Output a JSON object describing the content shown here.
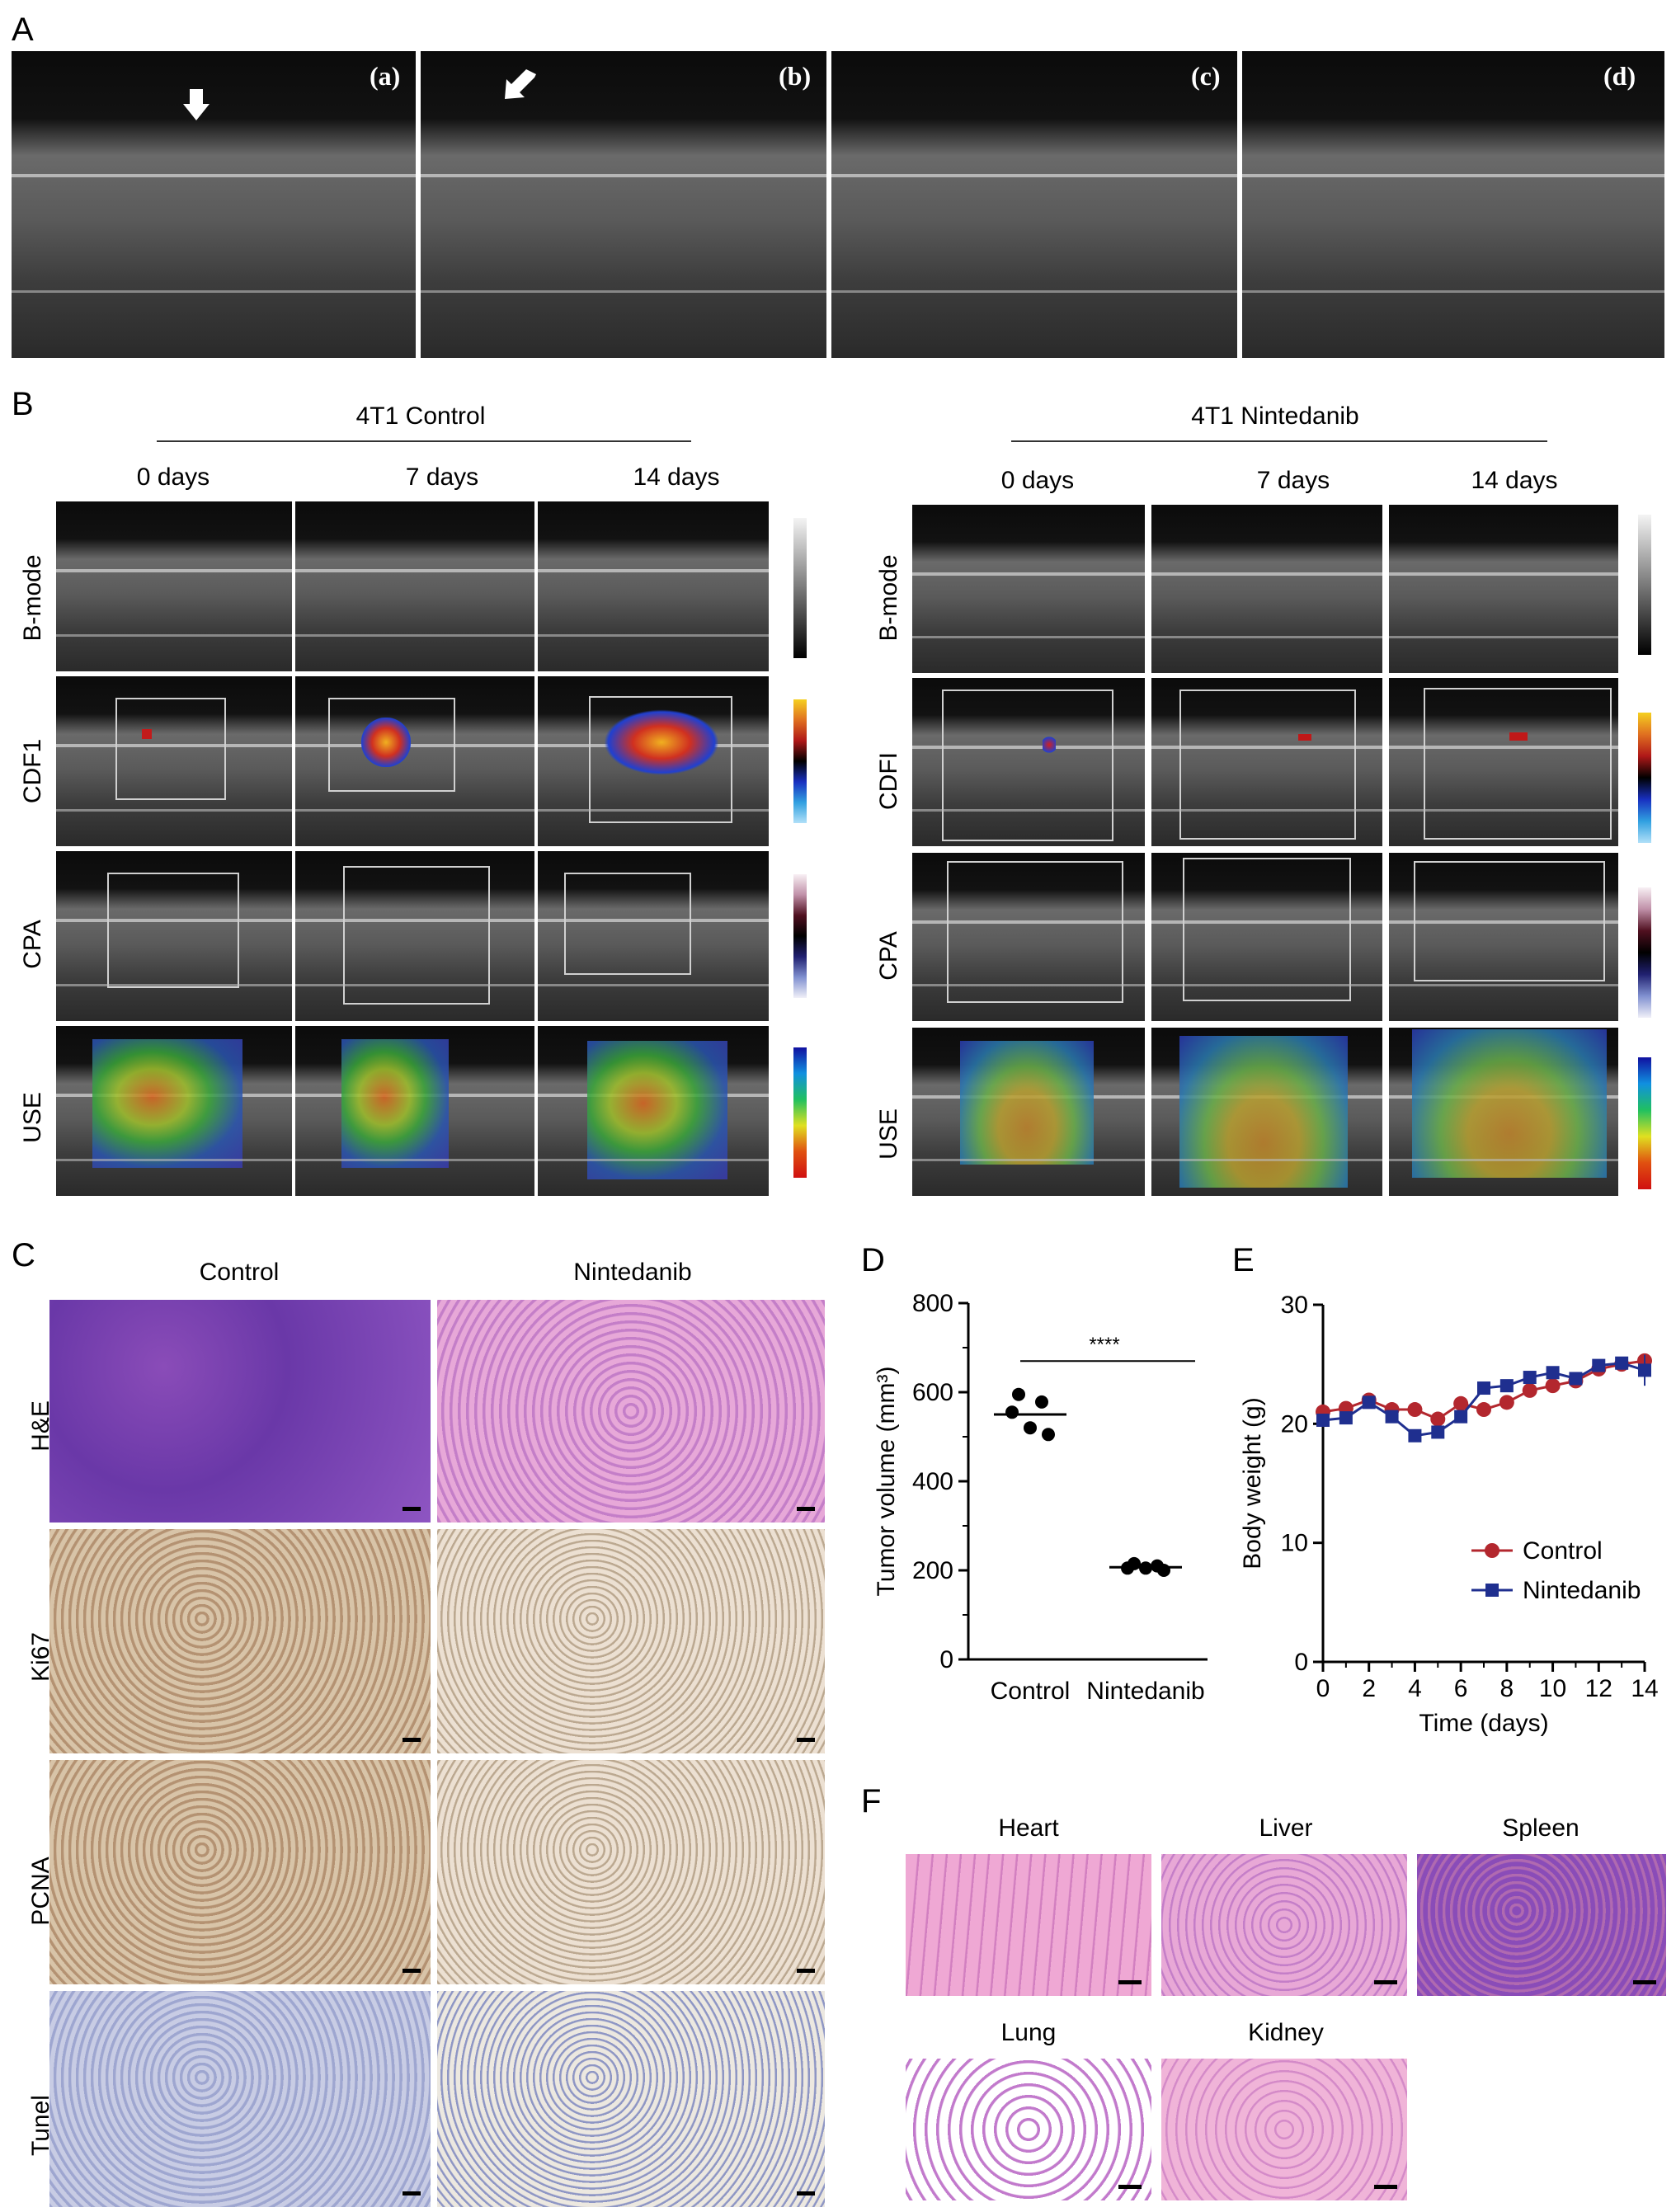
{
  "panels": {
    "A": "A",
    "B": "B",
    "C": "C",
    "D": "D",
    "E": "E",
    "F": "F"
  },
  "panelA": {
    "sub": [
      "(a)",
      "(b)",
      "(c)",
      "(d)"
    ]
  },
  "panelB": {
    "groups": [
      {
        "title": "4T1 Control",
        "days": [
          "0 days",
          "7 days",
          "14 days"
        ],
        "rows": [
          "B-mode",
          "CDF1",
          "CPA",
          "USE"
        ]
      },
      {
        "title": "4T1 Nintedanib",
        "days": [
          "0 days",
          "7 days",
          "14 days"
        ],
        "rows": [
          "B-mode",
          "CDFI",
          "CPA",
          "USE"
        ]
      }
    ]
  },
  "panelC": {
    "cols": [
      "Control",
      "Nintedanib"
    ],
    "rows": [
      "H&E",
      "Ki67",
      "PCNA",
      "Tunel"
    ]
  },
  "panelF": {
    "organs": [
      "Heart",
      "Liver",
      "Spleen",
      "Lung",
      "Kidney"
    ]
  },
  "chart_data": [
    {
      "type": "scatter",
      "panel": "D",
      "categories": [
        "Control",
        "Nintedanib"
      ],
      "ylabel": "Tumor volume (mm³)",
      "ylim": [
        0,
        800
      ],
      "yticks": [
        "0",
        "200",
        "400",
        "600",
        "800"
      ],
      "points": {
        "Control": [
          595,
          578,
          555,
          520,
          505
        ],
        "Nintedanib": [
          215,
          210,
          205,
          205,
          200
        ]
      },
      "means": {
        "Control": 550,
        "Nintedanib": 207
      },
      "significance": "****"
    },
    {
      "type": "line",
      "panel": "E",
      "xlabel": "Time (days)",
      "ylabel": "Body weight (g)",
      "xlim": [
        0,
        14
      ],
      "ylim": [
        0,
        30
      ],
      "xticks": [
        "0",
        "2",
        "4",
        "6",
        "8",
        "10",
        "12",
        "14"
      ],
      "yticks": [
        "0",
        "10",
        "20",
        "30"
      ],
      "x": [
        0,
        1,
        2,
        3,
        4,
        5,
        6,
        7,
        8,
        9,
        10,
        11,
        12,
        13,
        14
      ],
      "series": [
        {
          "name": "Control",
          "color": "#b3272e",
          "values": [
            21.0,
            21.3,
            22.0,
            21.2,
            21.2,
            20.4,
            21.7,
            21.2,
            21.8,
            22.8,
            23.2,
            23.6,
            24.6,
            25.0,
            25.3
          ]
        },
        {
          "name": "Nintedanib",
          "color": "#1f2f8f",
          "values": [
            20.3,
            20.5,
            21.8,
            20.6,
            19.0,
            19.3,
            20.6,
            23.0,
            23.2,
            23.9,
            24.3,
            23.8,
            24.9,
            25.1,
            24.5
          ]
        }
      ]
    }
  ]
}
